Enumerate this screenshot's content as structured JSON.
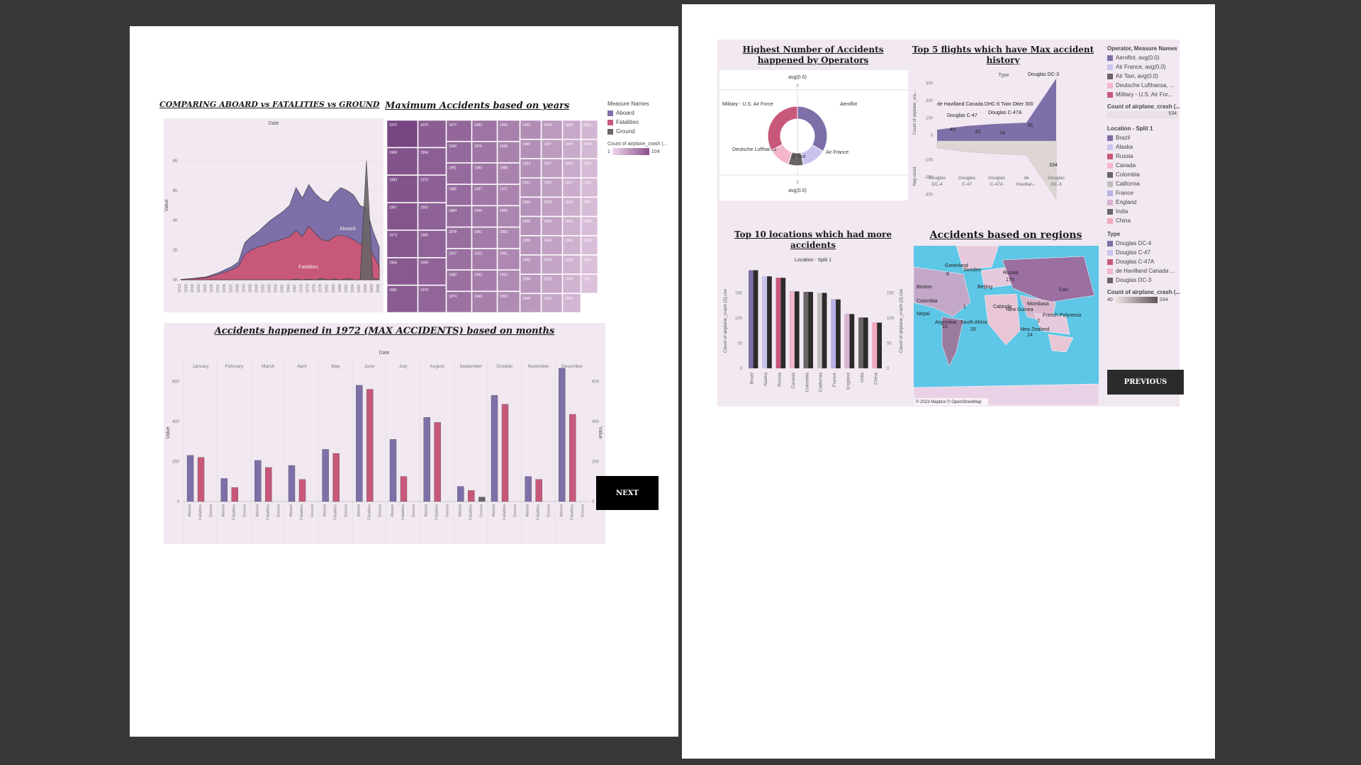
{
  "colors": {
    "aboard": "#7e6fa8",
    "fatalities": "#c8587a",
    "ground": "#6a6466",
    "panel": "#f1e8f1"
  },
  "nav": {
    "next": "NEXT",
    "previous": "PREVIOUS"
  },
  "chart_data": [
    {
      "id": "compare",
      "type": "area",
      "title": "COMPARING ABOARD vs FATALITIES vs GROUND",
      "header": "Date",
      "ylabel": "Value",
      "ylim": [
        0,
        10000
      ],
      "yticks": [
        "0K",
        "2K",
        "4K",
        "6K",
        "8K"
      ],
      "x": [
        1912,
        1916,
        1919,
        1922,
        1925,
        1928,
        1931,
        1934,
        1937,
        1940,
        1943,
        1946,
        1949,
        1952,
        1955,
        1958,
        1961,
        1964,
        1967,
        1970,
        1973,
        1976,
        1979,
        1982,
        1985,
        1988,
        1991,
        1994,
        1997,
        2000,
        2003,
        2006
      ],
      "series": [
        {
          "name": "Aboard",
          "values": [
            20,
            60,
            100,
            150,
            200,
            350,
            500,
            700,
            900,
            1200,
            2500,
            2900,
            3200,
            3600,
            4000,
            4300,
            4600,
            5000,
            6200,
            5500,
            6400,
            5800,
            5400,
            5200,
            5800,
            6200,
            6000,
            5700,
            5000,
            4800,
            3300,
            2200
          ]
        },
        {
          "name": "Fatalities",
          "values": [
            15,
            50,
            80,
            120,
            150,
            260,
            380,
            530,
            680,
            900,
            1700,
            2000,
            2200,
            2300,
            2500,
            2600,
            2750,
            2900,
            3300,
            2900,
            3600,
            3100,
            2700,
            2600,
            2900,
            3000,
            2900,
            2700,
            2400,
            2500,
            1700,
            900
          ]
        },
        {
          "name": "Ground",
          "values": [
            0,
            0,
            0,
            0,
            0,
            0,
            0,
            0,
            0,
            0,
            0,
            0,
            0,
            0,
            0,
            0,
            0,
            0,
            50,
            0,
            50,
            0,
            100,
            0,
            50,
            0,
            100,
            0,
            0,
            8000,
            100,
            0
          ]
        }
      ],
      "annotations": [
        "Aboard",
        "Fatalities"
      ]
    },
    {
      "id": "treemap",
      "type": "heatmap",
      "title": "Maximum Accidents based on years",
      "cells": [
        {
          "label": "1972",
          "v": 104
        },
        {
          "label": "1968",
          "v": 95
        },
        {
          "label": "1989",
          "v": 94
        },
        {
          "label": "1967",
          "v": 93
        },
        {
          "label": "1973",
          "v": 92
        },
        {
          "label": "1966",
          "v": 90
        },
        {
          "label": "1981",
          "v": 88
        },
        {
          "label": "1970",
          "v": 87
        },
        {
          "label": "1994",
          "v": 86
        },
        {
          "label": "1976",
          "v": 85
        },
        {
          "label": "1992",
          "v": 84
        },
        {
          "label": "1986",
          "v": 83
        },
        {
          "label": "1969",
          "v": 82
        },
        {
          "label": "1979",
          "v": 81
        },
        {
          "label": "1977",
          "v": 80
        },
        {
          "label": "1990",
          "v": 79
        },
        {
          "label": "1991",
          "v": 78
        },
        {
          "label": "1985",
          "v": 77
        },
        {
          "label": "1984",
          "v": 76
        },
        {
          "label": "1978",
          "v": 75
        },
        {
          "label": "1947",
          "v": 74
        },
        {
          "label": "1980",
          "v": 73
        },
        {
          "label": "1974",
          "v": 72
        },
        {
          "label": "1982",
          "v": 71
        },
        {
          "label": "1975",
          "v": 70
        },
        {
          "label": "1983",
          "v": 69
        },
        {
          "label": "1987",
          "v": 68
        },
        {
          "label": "1945",
          "v": 67
        },
        {
          "label": "1951",
          "v": 66
        },
        {
          "label": "1953",
          "v": 65
        },
        {
          "label": "1962",
          "v": 64
        },
        {
          "label": "1946",
          "v": 63
        },
        {
          "label": "1993",
          "v": 62
        },
        {
          "label": "1999",
          "v": 61
        },
        {
          "label": "1988",
          "v": 60
        },
        {
          "label": "1971",
          "v": 59
        },
        {
          "label": "1965",
          "v": 58
        },
        {
          "label": "2000",
          "v": 57
        },
        {
          "label": "1961",
          "v": 56
        },
        {
          "label": "1963",
          "v": 55
        },
        {
          "label": "1952",
          "v": 54
        },
        {
          "label": "1959",
          "v": 53
        },
        {
          "label": "1960",
          "v": 52
        },
        {
          "label": "1954",
          "v": 51
        },
        {
          "label": "2001",
          "v": 50
        },
        {
          "label": "1956",
          "v": 49
        },
        {
          "label": "1950",
          "v": 48
        },
        {
          "label": "1958",
          "v": 47
        },
        {
          "label": "1955",
          "v": 46
        },
        {
          "label": "1998",
          "v": 45
        },
        {
          "label": "1948",
          "v": 44
        },
        {
          "label": "1949",
          "v": 43
        },
        {
          "label": "1957",
          "v": 42
        },
        {
          "label": "1997",
          "v": 41
        },
        {
          "label": "1995",
          "v": 40
        },
        {
          "label": "1939",
          "v": 39
        },
        {
          "label": "1940",
          "v": 38
        },
        {
          "label": "1942",
          "v": 37
        },
        {
          "label": "1938",
          "v": 36
        },
        {
          "label": "1928",
          "v": 35
        },
        {
          "label": "1935",
          "v": 34
        },
        {
          "label": "1930",
          "v": 33
        },
        {
          "label": "1944",
          "v": 32
        },
        {
          "label": "1943",
          "v": 31
        },
        {
          "label": "1937",
          "v": 30
        },
        {
          "label": "1932",
          "v": 29
        },
        {
          "label": "1941",
          "v": 28
        },
        {
          "label": "1936",
          "v": 27
        },
        {
          "label": "1929",
          "v": 26
        },
        {
          "label": "1996",
          "v": 25
        },
        {
          "label": "2002",
          "v": 24
        },
        {
          "label": "2003",
          "v": 23
        },
        {
          "label": "2004",
          "v": 22
        },
        {
          "label": "2005",
          "v": 21
        },
        {
          "label": "2006",
          "v": 20
        },
        {
          "label": "2007",
          "v": 19
        },
        {
          "label": "2008",
          "v": 18
        },
        {
          "label": "1934",
          "v": 17
        },
        {
          "label": "1933",
          "v": 16
        },
        {
          "label": "1931",
          "v": 15
        }
      ]
    },
    {
      "id": "months",
      "type": "bar",
      "title": "Accidents happened in 1972 (MAX ACCIDENTS) based on months",
      "header": "Date",
      "ylabel": "Value",
      "ylim": [
        0,
        700
      ],
      "yticks": [
        0,
        200,
        400,
        600
      ],
      "categories": [
        "January",
        "February",
        "March",
        "April",
        "May",
        "June",
        "July",
        "August",
        "September",
        "October",
        "November",
        "December"
      ],
      "measures": [
        "Aboard",
        "Fatalities",
        "Ground"
      ],
      "series": [
        {
          "name": "Aboard",
          "values": [
            230,
            115,
            205,
            180,
            260,
            580,
            310,
            420,
            75,
            530,
            125,
            665
          ]
        },
        {
          "name": "Fatalities",
          "values": [
            220,
            70,
            170,
            110,
            240,
            560,
            125,
            395,
            55,
            485,
            110,
            435
          ]
        },
        {
          "name": "Ground",
          "values": [
            0,
            0,
            0,
            0,
            0,
            0,
            0,
            0,
            22,
            0,
            0,
            0
          ]
        }
      ]
    },
    {
      "id": "operators",
      "type": "pie",
      "title": "Highest Number of Accidents happened by Operators",
      "axis_top": "avg(0.0)",
      "axis_zero": "0",
      "slices": [
        {
          "label": "Aeroflot",
          "value": 179
        },
        {
          "label": "Air France",
          "value": 70
        },
        {
          "label": "Air Taxi",
          "value": 44
        },
        {
          "label": "Deutsche Lufthansa",
          "value": 63
        },
        {
          "label": "Military - U.S. Air Force",
          "value": 176
        }
      ]
    },
    {
      "id": "flights",
      "type": "area",
      "title": "Top 5 flights which have Max accident history",
      "header": "Type",
      "ylabel_top": "Count of airplane_cra...",
      "ylabel_bottom": "Neg count",
      "yticks_top": [
        0,
        100,
        200,
        300
      ],
      "yticks_bottom": [
        0,
        -100,
        -200,
        -300
      ],
      "ylim": [
        -350,
        350
      ],
      "categories": [
        "Douglas DC-4",
        "Douglas C-47",
        "Douglas C-47A",
        "de Havillan...",
        "Douglas DC-3"
      ],
      "top_values": [
        40,
        62,
        74,
        81,
        334
      ],
      "neg_values": [
        -40,
        -62,
        -74,
        -81,
        -334
      ],
      "labels": [
        "Douglas DC-3",
        "de Havilland Canada DHC-6 Twin Otter 300",
        "Douglas C-47",
        "Douglas C-47A"
      ],
      "value_labels": [
        "40",
        "62",
        "74",
        "81",
        "334"
      ]
    },
    {
      "id": "locations",
      "type": "bar",
      "title": "Top 10 locations which had more accidents",
      "header": "Location - Split 1",
      "ylabel": "Count of airplane_crash (2).csv",
      "ylim": [
        0,
        200
      ],
      "yticks": [
        0,
        50,
        100,
        150
      ],
      "categories": [
        "Brazil",
        "Alaska",
        "Russia",
        "Canada",
        "Colombia",
        "California",
        "France",
        "England",
        "India",
        "China"
      ],
      "values": [
        195,
        183,
        180,
        153,
        152,
        150,
        137,
        108,
        101,
        91
      ]
    }
  ],
  "legend1": {
    "title": "Measure Names",
    "items": [
      "Aboard",
      "Fatalities",
      "Ground"
    ],
    "count_title": "Count of airplane_crash (...",
    "min": "1",
    "max": "104"
  },
  "legend2": {
    "op_title": "Operator, Measure Names",
    "ops": [
      "Aeroflot, avg(0.0)",
      "Air France, avg(0.0)",
      "Air Taxi, avg(0.0)",
      "Deutsche Lufthansa, ...",
      "Military - U.S. Air For..."
    ],
    "count_title": "Count of airplane_crash (...",
    "count_max": "534",
    "loc_title": "Location - Split 1",
    "locs": [
      "Brazil",
      "Alaska",
      "Russia",
      "Canada",
      "Colombia",
      "California",
      "France",
      "England",
      "India",
      "China"
    ],
    "type_title": "Type",
    "types": [
      "Douglas DC-4",
      "Douglas C-47",
      "Douglas C-47A",
      "de Havilland Canada ...",
      "Douglas DC-3"
    ],
    "count2_title": "Count of airplane_crash (...",
    "count2_min": "40",
    "count2_max": "334"
  },
  "map": {
    "title": "Accidents based on regions",
    "labels": [
      "Greenland",
      "6",
      "Sweden",
      "Russia",
      "175",
      "Boston",
      "Beijing",
      "Can",
      "Colombia",
      "1",
      "Cabinda",
      "Mombasa",
      "Nepal",
      "Argentina",
      "10",
      "South Africa",
      "20",
      "New Guinea",
      "French Polynesia",
      "2",
      "New Zealand",
      "24"
    ],
    "attribution": "© 2023 Mapbox © OpenStreetMap"
  }
}
